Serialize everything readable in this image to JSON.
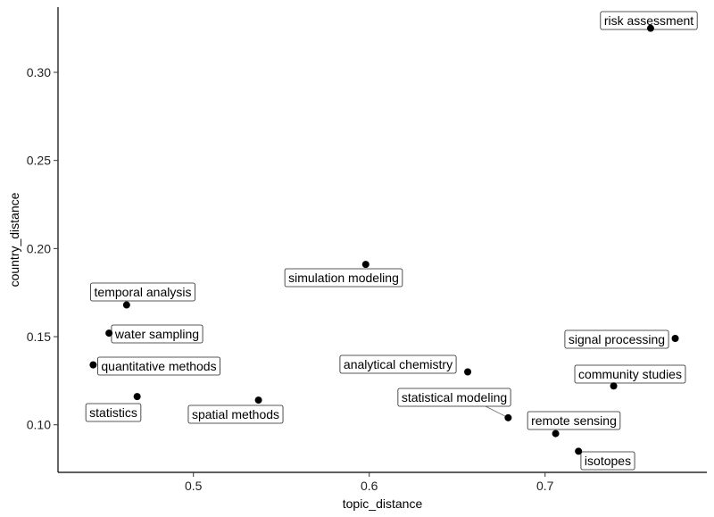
{
  "chart_data": {
    "type": "scatter",
    "title": "",
    "xlabel": "topic_distance",
    "ylabel": "country_distance",
    "xlim": [
      0.423,
      0.792
    ],
    "ylim": [
      0.073,
      0.337
    ],
    "xticks": [
      "0.5",
      "0.6",
      "0.7"
    ],
    "yticks": [
      "0.10",
      "0.15",
      "0.20",
      "0.25",
      "0.30"
    ],
    "grid": false,
    "points": [
      {
        "label": "risk assessment",
        "x": 0.76,
        "y": 0.325
      },
      {
        "label": "simulation modeling",
        "x": 0.598,
        "y": 0.191
      },
      {
        "label": "temporal analysis",
        "x": 0.462,
        "y": 0.168
      },
      {
        "label": "water sampling",
        "x": 0.452,
        "y": 0.152
      },
      {
        "label": "signal processing",
        "x": 0.774,
        "y": 0.149
      },
      {
        "label": "quantitative methods",
        "x": 0.443,
        "y": 0.134
      },
      {
        "label": "analytical chemistry",
        "x": 0.656,
        "y": 0.13
      },
      {
        "label": "community studies",
        "x": 0.739,
        "y": 0.122
      },
      {
        "label": "statistics",
        "x": 0.468,
        "y": 0.116
      },
      {
        "label": "spatial methods",
        "x": 0.537,
        "y": 0.114
      },
      {
        "label": "statistical modeling",
        "x": 0.679,
        "y": 0.104
      },
      {
        "label": "remote sensing",
        "x": 0.706,
        "y": 0.095
      },
      {
        "label": "isotopes",
        "x": 0.719,
        "y": 0.085
      }
    ]
  }
}
